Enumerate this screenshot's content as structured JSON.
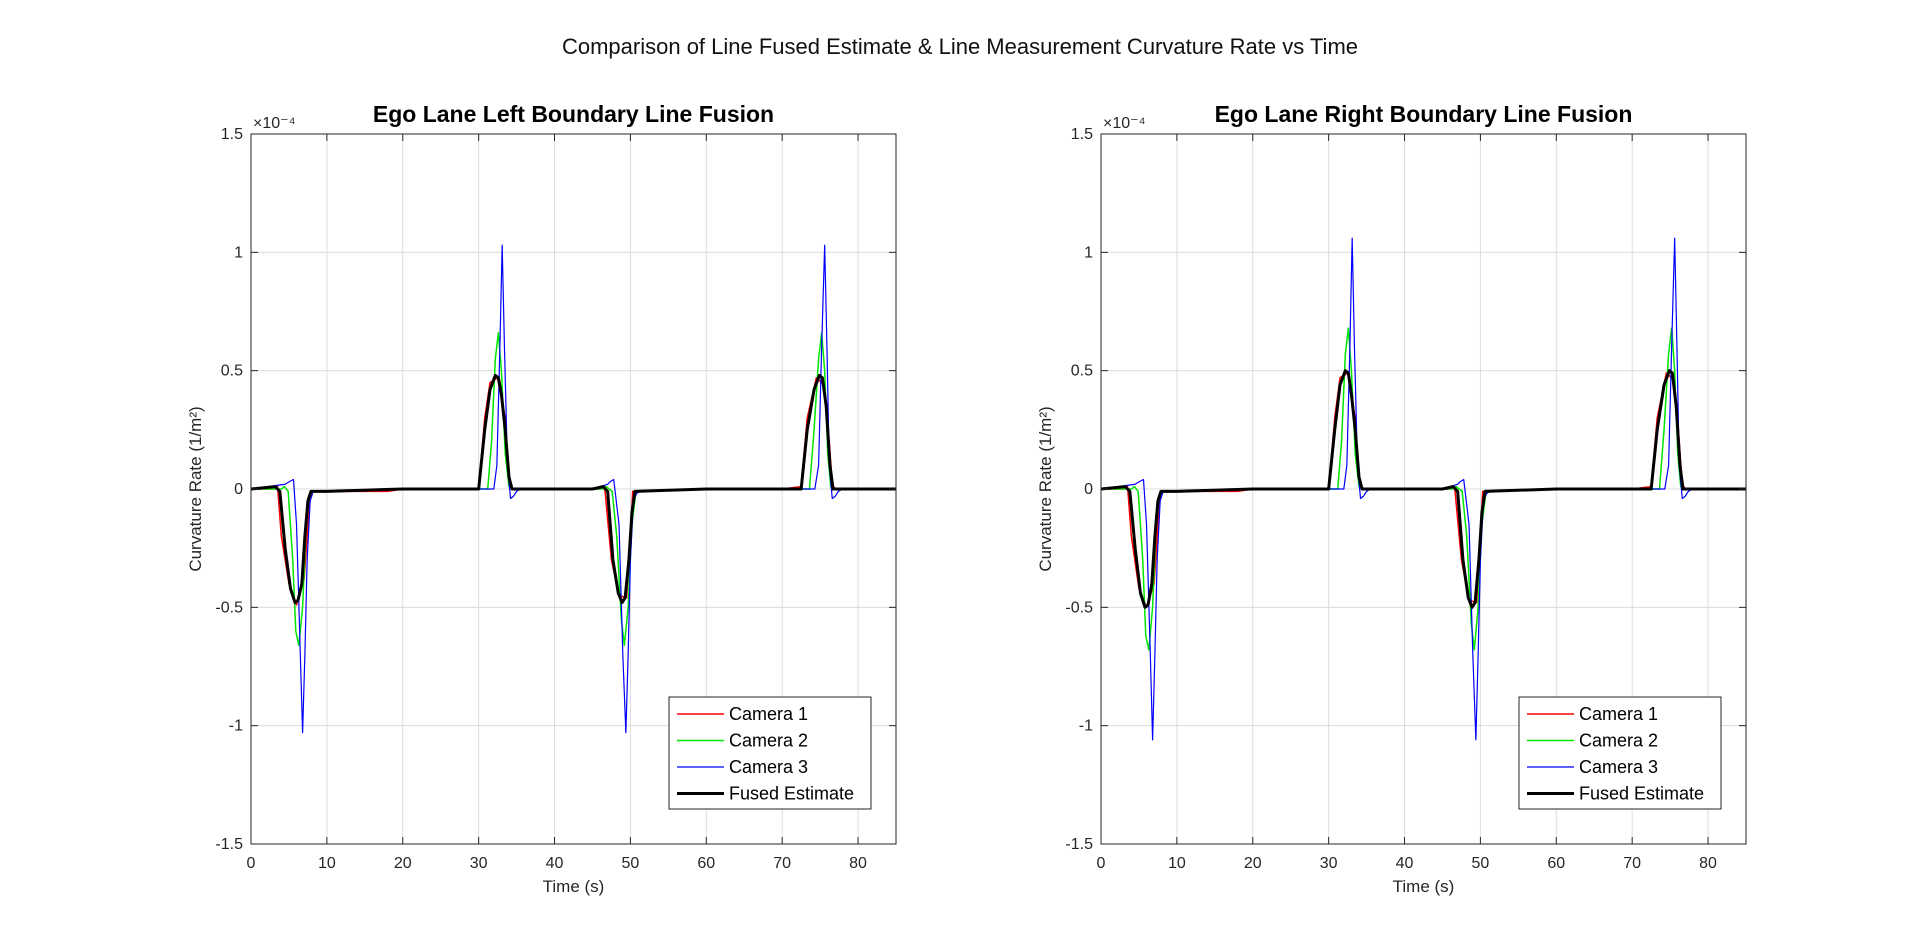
{
  "figure": {
    "title": "Comparison of Line Fused Estimate & Line Measurement Curvature Rate vs Time"
  },
  "colors": {
    "camera1": "#ff0000",
    "camera2": "#00e600",
    "camera3": "#0000ff",
    "fused": "#000000",
    "grid": "#dcdcdc",
    "axes": "#262626"
  },
  "chart_data": [
    {
      "type": "line",
      "title": "Ego Lane Left Boundary Line Fusion",
      "xlabel": "Time (s)",
      "ylabel": "Curvature Rate (1/m²)",
      "y_exponent_label": "×10⁻⁴",
      "xlim": [
        0,
        85
      ],
      "ylim": [
        -1.5,
        1.5
      ],
      "xticks": [
        0,
        10,
        20,
        30,
        40,
        50,
        60,
        70,
        80
      ],
      "yticks": [
        -1.5,
        -1,
        -0.5,
        0,
        0.5,
        1,
        1.5
      ],
      "ytick_labels": [
        "-1.5",
        "-1",
        "-0.5",
        "0",
        "0.5",
        "1",
        "1.5"
      ],
      "grid": true,
      "legend_position": "bottom-right",
      "series": [
        {
          "name": "Camera 1",
          "color": "#ff0000",
          "width": 1.5,
          "x": [
            0,
            3,
            3.5,
            4,
            5,
            6,
            7,
            7.5,
            7.8,
            10,
            18,
            20,
            30,
            30.8,
            31.5,
            32.5,
            33.5,
            34,
            34.3,
            36,
            45,
            46,
            46.6,
            47.5,
            48.5,
            49.5,
            50,
            50.3,
            52,
            60,
            70,
            72.5,
            73.3,
            74.5,
            75.5,
            76.2,
            76.6,
            77,
            85
          ],
          "y": [
            0,
            0,
            0.01,
            -0.2,
            -0.4,
            -0.49,
            -0.38,
            -0.15,
            -0.01,
            -0.01,
            -0.01,
            0,
            0,
            0.3,
            0.45,
            0.47,
            0.3,
            0.05,
            0,
            0,
            0,
            0,
            0.01,
            -0.3,
            -0.45,
            -0.46,
            -0.2,
            -0.01,
            -0.01,
            0,
            0,
            0.01,
            0.3,
            0.47,
            0.44,
            0.2,
            0.02,
            0,
            0
          ]
        },
        {
          "name": "Camera 2",
          "color": "#00e600",
          "width": 1.5,
          "x": [
            0,
            4,
            4.4,
            4.9,
            5.5,
            5.9,
            6.3,
            6.8,
            7.2,
            7.6,
            8,
            10,
            20,
            30,
            31.2,
            31.7,
            32.2,
            32.6,
            33,
            33.5,
            34,
            34.5,
            45,
            46.3,
            46.8,
            47.6,
            48.2,
            48.8,
            49.2,
            49.7,
            50.2,
            50.7,
            51,
            60,
            72.5,
            73.6,
            74.2,
            74.8,
            75.2,
            75.6,
            76,
            76.4,
            77,
            85
          ],
          "y": [
            0,
            0,
            0.01,
            -0.01,
            -0.3,
            -0.6,
            -0.66,
            -0.5,
            -0.2,
            -0.05,
            -0.01,
            -0.01,
            0,
            0,
            0,
            0.2,
            0.55,
            0.66,
            0.5,
            0.15,
            0.01,
            0,
            0,
            0,
            0.01,
            -0.01,
            -0.2,
            -0.55,
            -0.66,
            -0.5,
            -0.15,
            -0.02,
            -0.01,
            0,
            0,
            0,
            0.25,
            0.55,
            0.66,
            0.5,
            0.15,
            0.01,
            0,
            0
          ]
        },
        {
          "name": "Camera 3",
          "color": "#0000ff",
          "width": 1.2,
          "x": [
            0,
            4.5,
            5,
            5.6,
            6,
            6.5,
            6.8,
            7.1,
            7.4,
            7.8,
            8.2,
            10,
            20,
            30,
            32,
            32.4,
            32.8,
            33.1,
            33.4,
            33.8,
            34.2,
            34.6,
            35,
            35.5,
            45,
            47,
            47.3,
            47.8,
            48.5,
            49,
            49.4,
            49.7,
            50,
            50.4,
            50.8,
            51.2,
            60,
            74.3,
            74.8,
            75.2,
            75.6,
            75.9,
            76.2,
            76.6,
            77,
            77.4,
            78,
            85
          ],
          "y": [
            0,
            0.02,
            0.03,
            0.04,
            -0.15,
            -0.7,
            -1.03,
            -0.7,
            -0.3,
            -0.05,
            -0.01,
            -0.01,
            0,
            0,
            0,
            0.1,
            0.6,
            1.03,
            0.6,
            0.1,
            -0.04,
            -0.03,
            -0.01,
            0,
            0,
            0.02,
            0.03,
            0.04,
            -0.15,
            -0.7,
            -1.03,
            -0.7,
            -0.3,
            -0.05,
            -0.02,
            -0.01,
            0,
            0,
            0.1,
            0.6,
            1.03,
            0.6,
            0.1,
            -0.04,
            -0.03,
            -0.01,
            0,
            0
          ]
        },
        {
          "name": "Fused Estimate",
          "color": "#000000",
          "width": 3,
          "x": [
            0,
            3.2,
            3.8,
            4.5,
            5.2,
            5.8,
            6.2,
            6.7,
            7.1,
            7.5,
            7.9,
            10,
            20,
            30,
            30.8,
            31.5,
            32.2,
            32.6,
            33,
            33.5,
            34,
            34.4,
            45,
            46.4,
            47,
            47.7,
            48.4,
            48.9,
            49.3,
            49.8,
            50.2,
            50.6,
            60,
            72.5,
            73.3,
            74.2,
            74.9,
            75.3,
            75.8,
            76.3,
            76.7,
            85
          ],
          "y": [
            0,
            0.01,
            -0.01,
            -0.25,
            -0.42,
            -0.48,
            -0.47,
            -0.4,
            -0.2,
            -0.05,
            -0.01,
            -0.01,
            0,
            0,
            0.25,
            0.42,
            0.48,
            0.47,
            0.4,
            0.25,
            0.05,
            0,
            0,
            0.01,
            -0.01,
            -0.3,
            -0.44,
            -0.48,
            -0.46,
            -0.3,
            -0.1,
            -0.01,
            0,
            0,
            0.25,
            0.42,
            0.48,
            0.47,
            0.35,
            0.1,
            0,
            0
          ]
        }
      ]
    },
    {
      "type": "line",
      "title": "Ego Lane Right Boundary Line Fusion",
      "xlabel": "Time (s)",
      "ylabel": "Curvature Rate (1/m²)",
      "y_exponent_label": "×10⁻⁴",
      "xlim": [
        0,
        85
      ],
      "ylim": [
        -1.5,
        1.5
      ],
      "xticks": [
        0,
        10,
        20,
        30,
        40,
        50,
        60,
        70,
        80
      ],
      "yticks": [
        -1.5,
        -1,
        -0.5,
        0,
        0.5,
        1,
        1.5
      ],
      "ytick_labels": [
        "-1.5",
        "-1",
        "-0.5",
        "0",
        "0.5",
        "1",
        "1.5"
      ],
      "grid": true,
      "legend_position": "bottom-right",
      "series": [
        {
          "name": "Camera 1",
          "color": "#ff0000",
          "width": 1.5,
          "x": [
            0,
            3,
            3.5,
            4,
            5,
            6,
            7,
            7.5,
            7.8,
            10,
            18,
            20,
            30,
            30.8,
            31.5,
            32.5,
            33.5,
            34,
            34.3,
            36,
            45,
            46,
            46.6,
            47.5,
            48.5,
            49.5,
            50,
            50.3,
            52,
            60,
            70,
            72.5,
            73.3,
            74.5,
            75.5,
            76.2,
            76.6,
            77,
            85
          ],
          "y": [
            0,
            0,
            0.01,
            -0.2,
            -0.42,
            -0.5,
            -0.4,
            -0.15,
            -0.01,
            -0.01,
            -0.01,
            0,
            0,
            0.3,
            0.47,
            0.49,
            0.3,
            0.05,
            0,
            0,
            0,
            0,
            0.01,
            -0.3,
            -0.47,
            -0.48,
            -0.2,
            -0.01,
            -0.01,
            0,
            0,
            0.01,
            0.3,
            0.49,
            0.46,
            0.2,
            0.02,
            0,
            0
          ]
        },
        {
          "name": "Camera 2",
          "color": "#00e600",
          "width": 1.5,
          "x": [
            0,
            4,
            4.4,
            4.9,
            5.5,
            5.9,
            6.3,
            6.8,
            7.2,
            7.6,
            8,
            10,
            20,
            30,
            31.2,
            31.7,
            32.2,
            32.6,
            33,
            33.5,
            34,
            34.5,
            45,
            46.3,
            46.8,
            47.6,
            48.2,
            48.8,
            49.2,
            49.7,
            50.2,
            50.7,
            51,
            60,
            72.5,
            73.6,
            74.2,
            74.8,
            75.2,
            75.6,
            76,
            76.4,
            77,
            85
          ],
          "y": [
            0,
            0,
            0.01,
            -0.01,
            -0.3,
            -0.62,
            -0.68,
            -0.5,
            -0.2,
            -0.05,
            -0.01,
            -0.01,
            0,
            0,
            0,
            0.2,
            0.57,
            0.68,
            0.5,
            0.15,
            0.01,
            0,
            0,
            0,
            0.01,
            -0.01,
            -0.2,
            -0.57,
            -0.68,
            -0.5,
            -0.15,
            -0.02,
            -0.01,
            0,
            0,
            0,
            0.25,
            0.57,
            0.68,
            0.5,
            0.15,
            0.01,
            0,
            0
          ]
        },
        {
          "name": "Camera 3",
          "color": "#0000ff",
          "width": 1.2,
          "x": [
            0,
            4.5,
            5,
            5.6,
            6,
            6.5,
            6.8,
            7.1,
            7.4,
            7.8,
            8.2,
            10,
            20,
            30,
            32,
            32.4,
            32.8,
            33.1,
            33.4,
            33.8,
            34.2,
            34.6,
            35,
            35.5,
            45,
            47,
            47.3,
            47.8,
            48.5,
            49,
            49.4,
            49.7,
            50,
            50.4,
            50.8,
            51.2,
            60,
            74.3,
            74.8,
            75.2,
            75.6,
            75.9,
            76.2,
            76.6,
            77,
            77.4,
            78,
            85
          ],
          "y": [
            0,
            0.02,
            0.03,
            0.04,
            -0.15,
            -0.7,
            -1.06,
            -0.7,
            -0.3,
            -0.05,
            -0.01,
            -0.01,
            0,
            0,
            0,
            0.1,
            0.6,
            1.06,
            0.6,
            0.1,
            -0.04,
            -0.03,
            -0.01,
            0,
            0,
            0.02,
            0.03,
            0.04,
            -0.15,
            -0.7,
            -1.06,
            -0.7,
            -0.3,
            -0.05,
            -0.02,
            -0.01,
            0,
            0,
            0.1,
            0.6,
            1.06,
            0.6,
            0.1,
            -0.04,
            -0.03,
            -0.01,
            0,
            0
          ]
        },
        {
          "name": "Fused Estimate",
          "color": "#000000",
          "width": 3,
          "x": [
            0,
            3.2,
            3.8,
            4.5,
            5.2,
            5.8,
            6.2,
            6.7,
            7.1,
            7.5,
            7.9,
            10,
            20,
            30,
            30.8,
            31.5,
            32.2,
            32.6,
            33,
            33.5,
            34,
            34.4,
            45,
            46.4,
            47,
            47.7,
            48.4,
            48.9,
            49.3,
            49.8,
            50.2,
            50.6,
            60,
            72.5,
            73.3,
            74.2,
            74.9,
            75.3,
            75.8,
            76.3,
            76.7,
            85
          ],
          "y": [
            0,
            0.01,
            -0.01,
            -0.25,
            -0.44,
            -0.5,
            -0.49,
            -0.4,
            -0.2,
            -0.05,
            -0.01,
            -0.01,
            0,
            0,
            0.25,
            0.44,
            0.5,
            0.49,
            0.4,
            0.25,
            0.05,
            0,
            0,
            0.01,
            -0.01,
            -0.3,
            -0.46,
            -0.5,
            -0.48,
            -0.3,
            -0.1,
            -0.01,
            0,
            0,
            0.25,
            0.44,
            0.5,
            0.49,
            0.35,
            0.1,
            0,
            0
          ]
        }
      ]
    }
  ]
}
